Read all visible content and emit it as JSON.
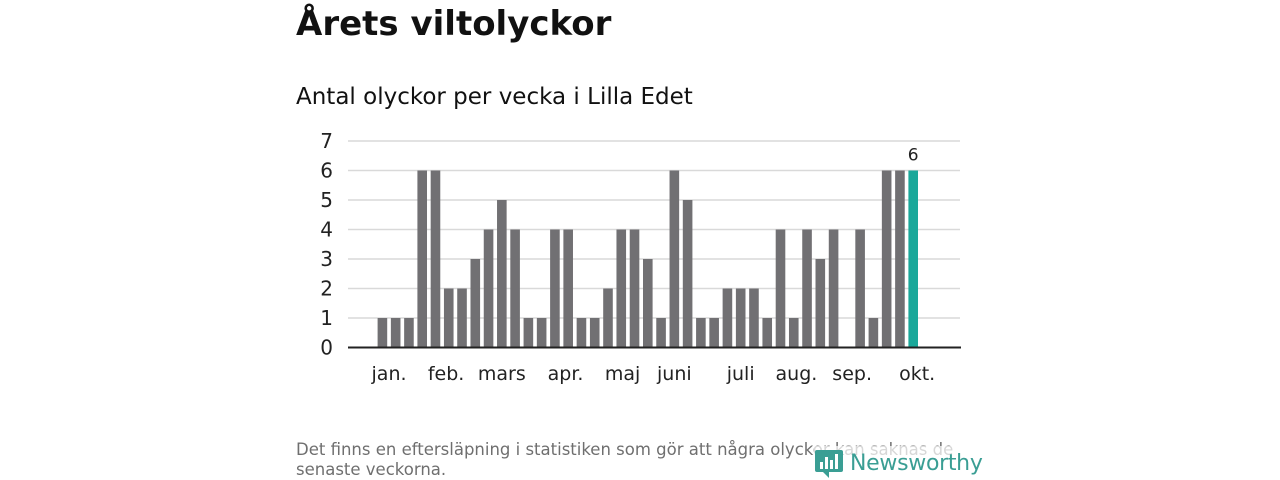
{
  "title": "Årets viltolyckor",
  "subtitle": "Antal olyckor per vecka i Lilla Edet",
  "footnote": "Det finns en eftersläpning i statistiken som gör att några olyckor kan saknas de senaste veckorna.",
  "logo_text": "Newsworthy",
  "colors": {
    "bar": "#717073",
    "highlight": "#1aa89a",
    "grid": "#d9d9d9",
    "axis": "#222222",
    "logo": "#3a9e94"
  },
  "chart_data": {
    "type": "bar",
    "title": "Antal olyckor per vecka i Lilla Edet",
    "xlabel": "",
    "ylabel": "",
    "ylim": [
      0,
      7
    ],
    "yticks": [
      0,
      1,
      2,
      3,
      4,
      5,
      6,
      7
    ],
    "x": [
      2,
      3,
      4,
      5,
      6,
      7,
      8,
      9,
      10,
      11,
      12,
      13,
      14,
      15,
      16,
      17,
      18,
      19,
      20,
      21,
      22,
      23,
      24,
      25,
      26,
      27,
      28,
      29,
      30,
      31,
      32,
      33,
      34,
      35,
      36,
      38,
      39,
      40,
      41,
      42
    ],
    "values": [
      1,
      1,
      1,
      6,
      6,
      2,
      2,
      3,
      4,
      5,
      4,
      1,
      1,
      4,
      4,
      1,
      1,
      2,
      4,
      4,
      3,
      1,
      6,
      5,
      1,
      1,
      2,
      2,
      2,
      1,
      4,
      1,
      4,
      3,
      4,
      4,
      1,
      6,
      6,
      6
    ],
    "highlight_index": 39,
    "data_labels": [
      {
        "index": 39,
        "text": "6"
      }
    ],
    "month_labels": [
      {
        "label": "jan.",
        "week": 2.5
      },
      {
        "label": "feb.",
        "week": 6.8
      },
      {
        "label": "mars",
        "week": 11.0
      },
      {
        "label": "apr.",
        "week": 15.8
      },
      {
        "label": "maj",
        "week": 20.1
      },
      {
        "label": "juni",
        "week": 24.0
      },
      {
        "label": "juli",
        "week": 29.0
      },
      {
        "label": "aug.",
        "week": 33.2
      },
      {
        "label": "sep.",
        "week": 37.4
      },
      {
        "label": "okt.",
        "week": 42.3
      }
    ],
    "grid": true,
    "legend": "none"
  }
}
